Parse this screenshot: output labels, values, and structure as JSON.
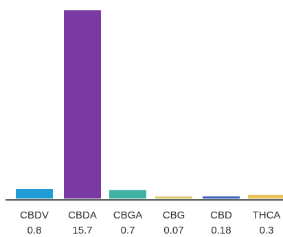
{
  "chart_data": {
    "type": "bar",
    "categories": [
      "CBDV",
      "CBDA",
      "CBGA",
      "CBG",
      "CBD",
      "THCA"
    ],
    "values": [
      0.8,
      15.7,
      0.7,
      0.07,
      0.18,
      0.3
    ],
    "value_labels": [
      "0.8",
      "15.7",
      "0.7",
      "0.07",
      "0.18",
      "0.3"
    ],
    "colors": [
      "#1f9bd6",
      "#7a3aa3",
      "#3fb2a6",
      "#d6c86a",
      "#3a63b8",
      "#e8c15a"
    ],
    "title": "",
    "xlabel": "",
    "ylabel": "",
    "ylim": [
      0,
      15.7
    ],
    "grid": false,
    "legend": "none"
  }
}
